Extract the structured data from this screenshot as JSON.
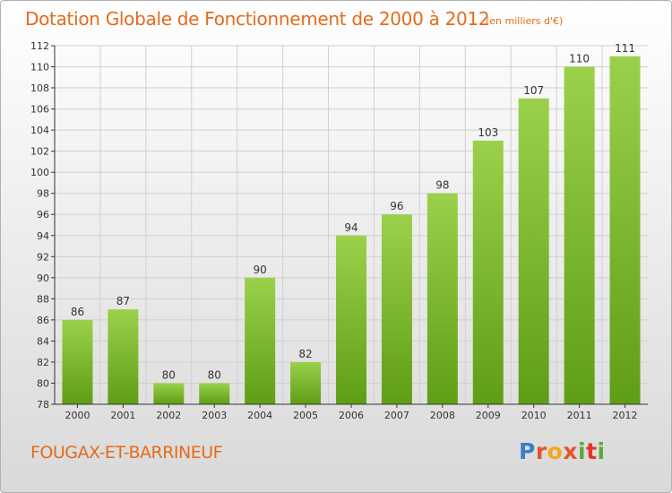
{
  "header": {
    "title": "Dotation Globale de Fonctionnement de 2000 à 2012",
    "subtitle": "(en milliers d'€)"
  },
  "footer": {
    "place": "FOUGAX-ET-BARRINEUF",
    "logo": [
      "P",
      "r",
      "o",
      "x",
      "i",
      "t",
      "i"
    ]
  },
  "colors": {
    "title": "#e36b1c",
    "bar_top": "#9bd14a",
    "bar_bottom": "#5e9e15",
    "grid": "#d0d0d0",
    "axis": "#333333"
  },
  "chart_data": {
    "type": "bar",
    "title": "Dotation Globale de Fonctionnement de 2000 à 2012",
    "subtitle": "(en milliers d'€)",
    "xlabel": "",
    "ylabel": "",
    "categories": [
      "2000",
      "2001",
      "2002",
      "2003",
      "2004",
      "2005",
      "2006",
      "2007",
      "2008",
      "2009",
      "2010",
      "2011",
      "2012"
    ],
    "values": [
      86,
      87,
      80,
      80,
      90,
      82,
      94,
      96,
      98,
      103,
      107,
      110,
      111
    ],
    "ylim": [
      78,
      112
    ],
    "yticks": [
      78,
      80,
      82,
      84,
      86,
      88,
      90,
      92,
      94,
      96,
      98,
      100,
      102,
      104,
      106,
      108,
      110,
      112
    ],
    "grid": true
  }
}
